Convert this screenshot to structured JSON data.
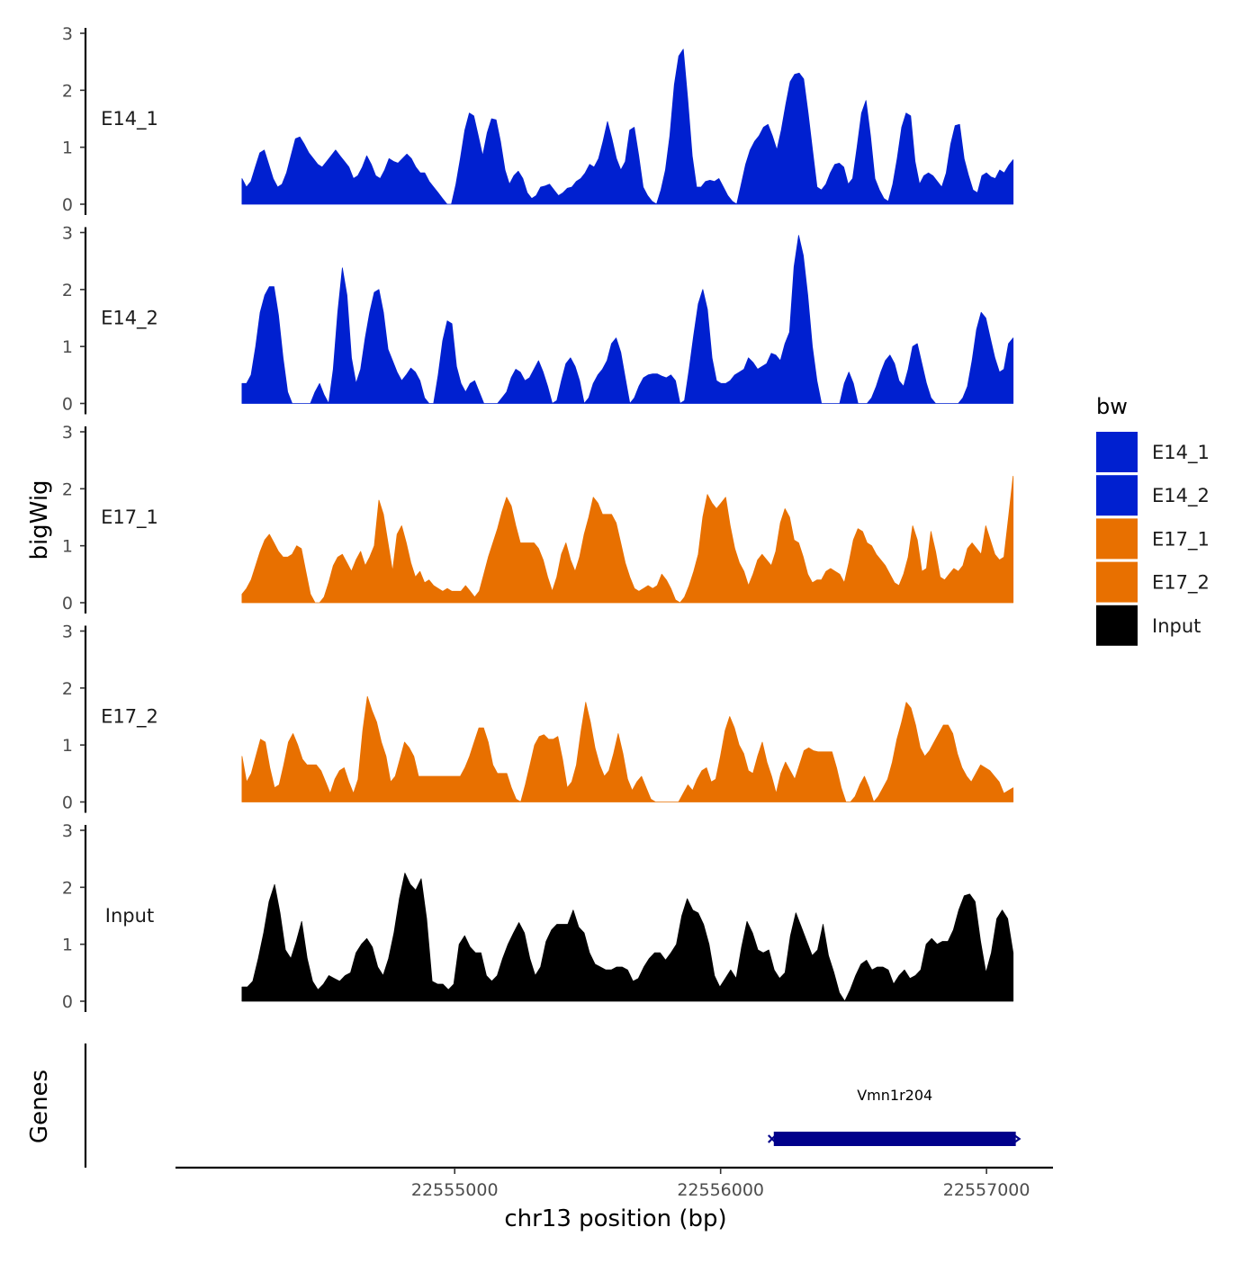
{
  "chart_data": {
    "type": "area",
    "chromosome": "chr13",
    "x_range": [
      22554200,
      22557100
    ],
    "xlim": [
      22553950,
      22557250
    ],
    "ylim": [
      0,
      3
    ],
    "y_ticks": [
      "0",
      "1",
      "2",
      "3"
    ],
    "x_ticks": [
      {
        "value": 22555000,
        "label": "22555000"
      },
      {
        "value": 22556000,
        "label": "22556000"
      },
      {
        "value": 22557000,
        "label": "22557000"
      }
    ],
    "ylabel": "bigWig",
    "xlabel": "chr13 position (bp)",
    "genes_label": "Genes",
    "legend": {
      "title": "bw",
      "items": [
        {
          "name": "E14_1",
          "color": "#0020d0"
        },
        {
          "name": "E14_2",
          "color": "#0020d0"
        },
        {
          "name": "E17_1",
          "color": "#e87000"
        },
        {
          "name": "E17_2",
          "color": "#e87000"
        },
        {
          "name": "Input",
          "color": "#000000"
        }
      ]
    },
    "gene": {
      "name": "Vmn1r204",
      "start": 22556200,
      "end": 22557110,
      "strand": "+",
      "color": "#00008b"
    },
    "series": [
      {
        "name": "E14_1",
        "label": "E14_1",
        "color": "#0020d0",
        "values": [
          0.45,
          0.3,
          0.4,
          0.65,
          0.9,
          0.95,
          0.7,
          0.45,
          0.3,
          0.35,
          0.55,
          0.85,
          1.15,
          1.18,
          1.05,
          0.9,
          0.8,
          0.7,
          0.65,
          0.75,
          0.85,
          0.95,
          0.85,
          0.75,
          0.65,
          0.45,
          0.5,
          0.65,
          0.85,
          0.7,
          0.5,
          0.45,
          0.6,
          0.8,
          0.75,
          0.72,
          0.8,
          0.88,
          0.8,
          0.65,
          0.55,
          0.55,
          0.4,
          0.3,
          0.2,
          0.1,
          0.0,
          0.0,
          0.35,
          0.8,
          1.3,
          1.6,
          1.55,
          1.2,
          0.85,
          1.25,
          1.5,
          1.48,
          1.1,
          0.6,
          0.35,
          0.5,
          0.58,
          0.45,
          0.2,
          0.1,
          0.15,
          0.3,
          0.32,
          0.35,
          0.25,
          0.15,
          0.2,
          0.28,
          0.3,
          0.4,
          0.45,
          0.55,
          0.7,
          0.65,
          0.8,
          1.1,
          1.45,
          1.15,
          0.8,
          0.6,
          0.75,
          1.3,
          1.35,
          0.85,
          0.3,
          0.15,
          0.05,
          0.0,
          0.25,
          0.6,
          1.2,
          2.1,
          2.6,
          2.72,
          1.85,
          0.85,
          0.3,
          0.3,
          0.4,
          0.42,
          0.4,
          0.45,
          0.3,
          0.15,
          0.05,
          0.0,
          0.35,
          0.7,
          0.95,
          1.1,
          1.2,
          1.35,
          1.4,
          1.2,
          0.95,
          1.3,
          1.75,
          2.15,
          2.28,
          2.3,
          2.2,
          1.6,
          0.95,
          0.3,
          0.25,
          0.35,
          0.55,
          0.7,
          0.72,
          0.65,
          0.35,
          0.45,
          1.0,
          1.6,
          1.82,
          1.2,
          0.45,
          0.25,
          0.1,
          0.05,
          0.35,
          0.8,
          1.35,
          1.6,
          1.55,
          0.75,
          0.35,
          0.5,
          0.55,
          0.5,
          0.4,
          0.3,
          0.55,
          1.05,
          1.38,
          1.4,
          0.8,
          0.5,
          0.25,
          0.2,
          0.5,
          0.55,
          0.48,
          0.45,
          0.6,
          0.55,
          0.68,
          0.78
        ]
      },
      {
        "name": "E14_2",
        "label": "E14_2",
        "color": "#0020d0",
        "values": [
          0.35,
          0.35,
          0.5,
          1.0,
          1.6,
          1.9,
          2.05,
          2.05,
          1.55,
          0.8,
          0.2,
          0.0,
          0.0,
          0.0,
          0.0,
          0.0,
          0.2,
          0.35,
          0.15,
          0.0,
          0.6,
          1.6,
          2.38,
          1.9,
          0.8,
          0.35,
          0.6,
          1.15,
          1.6,
          1.95,
          2.0,
          1.6,
          0.95,
          0.75,
          0.55,
          0.4,
          0.5,
          0.62,
          0.55,
          0.4,
          0.1,
          0.0,
          0.0,
          0.5,
          1.1,
          1.45,
          1.4,
          0.65,
          0.35,
          0.2,
          0.35,
          0.4,
          0.2,
          0.0,
          0.0,
          0.0,
          0.0,
          0.1,
          0.2,
          0.45,
          0.6,
          0.55,
          0.4,
          0.45,
          0.6,
          0.75,
          0.55,
          0.3,
          0.0,
          0.05,
          0.4,
          0.7,
          0.8,
          0.65,
          0.4,
          0.0,
          0.1,
          0.35,
          0.5,
          0.6,
          0.75,
          1.05,
          1.15,
          0.9,
          0.45,
          0.0,
          0.1,
          0.3,
          0.45,
          0.5,
          0.52,
          0.52,
          0.48,
          0.45,
          0.5,
          0.4,
          0.0,
          0.05,
          0.6,
          1.2,
          1.75,
          2.0,
          1.65,
          0.8,
          0.4,
          0.35,
          0.35,
          0.4,
          0.5,
          0.55,
          0.6,
          0.8,
          0.72,
          0.6,
          0.65,
          0.7,
          0.88,
          0.85,
          0.75,
          1.05,
          1.25,
          2.4,
          2.95,
          2.6,
          1.9,
          1.0,
          0.4,
          0.0,
          0.0,
          0.0,
          0.0,
          0.0,
          0.35,
          0.55,
          0.35,
          0.0,
          0.0,
          0.0,
          0.1,
          0.3,
          0.55,
          0.75,
          0.85,
          0.7,
          0.4,
          0.3,
          0.6,
          1.0,
          1.05,
          0.7,
          0.35,
          0.1,
          0.0,
          0.0,
          0.0,
          0.0,
          0.0,
          0.0,
          0.1,
          0.3,
          0.75,
          1.3,
          1.6,
          1.5,
          1.15,
          0.8,
          0.55,
          0.6,
          1.05,
          1.15
        ]
      },
      {
        "name": "E17_1",
        "label": "E17_1",
        "color": "#e87000",
        "values": [
          0.15,
          0.25,
          0.4,
          0.65,
          0.9,
          1.1,
          1.2,
          1.05,
          0.9,
          0.8,
          0.8,
          0.85,
          1.0,
          0.95,
          0.55,
          0.15,
          0.0,
          0.0,
          0.1,
          0.35,
          0.65,
          0.8,
          0.85,
          0.7,
          0.55,
          0.75,
          0.9,
          0.65,
          0.8,
          1.0,
          1.8,
          1.55,
          1.05,
          0.55,
          1.2,
          1.35,
          1.05,
          0.7,
          0.45,
          0.55,
          0.35,
          0.4,
          0.3,
          0.25,
          0.2,
          0.25,
          0.2,
          0.2,
          0.2,
          0.3,
          0.2,
          0.1,
          0.2,
          0.5,
          0.8,
          1.05,
          1.3,
          1.6,
          1.85,
          1.7,
          1.35,
          1.05,
          1.05,
          1.05,
          1.05,
          0.95,
          0.75,
          0.45,
          0.2,
          0.45,
          0.85,
          1.05,
          0.75,
          0.55,
          0.8,
          1.2,
          1.5,
          1.85,
          1.75,
          1.55,
          1.55,
          1.55,
          1.4,
          1.05,
          0.7,
          0.45,
          0.25,
          0.2,
          0.25,
          0.3,
          0.25,
          0.3,
          0.5,
          0.4,
          0.25,
          0.05,
          0.0,
          0.1,
          0.3,
          0.55,
          0.85,
          1.5,
          1.9,
          1.75,
          1.65,
          1.75,
          1.85,
          1.35,
          0.95,
          0.7,
          0.55,
          0.3,
          0.5,
          0.75,
          0.85,
          0.75,
          0.65,
          0.9,
          1.4,
          1.65,
          1.5,
          1.1,
          1.05,
          0.8,
          0.5,
          0.35,
          0.4,
          0.4,
          0.55,
          0.6,
          0.55,
          0.5,
          0.35,
          0.7,
          1.1,
          1.3,
          1.25,
          1.05,
          1.0,
          0.85,
          0.75,
          0.65,
          0.5,
          0.35,
          0.3,
          0.5,
          0.8,
          1.35,
          1.1,
          0.55,
          0.6,
          1.25,
          0.9,
          0.45,
          0.4,
          0.5,
          0.6,
          0.55,
          0.65,
          0.95,
          1.05,
          0.95,
          0.85,
          1.35,
          1.1,
          0.85,
          0.75,
          0.8,
          1.5,
          2.22
        ]
      },
      {
        "name": "E17_2",
        "label": "E17_2",
        "color": "#e87000",
        "values": [
          0.8,
          0.35,
          0.5,
          0.8,
          1.1,
          1.05,
          0.6,
          0.25,
          0.3,
          0.65,
          1.05,
          1.2,
          1.0,
          0.75,
          0.65,
          0.65,
          0.65,
          0.55,
          0.35,
          0.15,
          0.4,
          0.55,
          0.6,
          0.35,
          0.15,
          0.4,
          1.25,
          1.85,
          1.6,
          1.4,
          1.05,
          0.8,
          0.35,
          0.45,
          0.75,
          1.05,
          0.95,
          0.8,
          0.45,
          0.45,
          0.45,
          0.45,
          0.45,
          0.45,
          0.45,
          0.45,
          0.45,
          0.45,
          0.6,
          0.8,
          1.05,
          1.3,
          1.3,
          1.05,
          0.65,
          0.5,
          0.5,
          0.5,
          0.25,
          0.05,
          0.0,
          0.3,
          0.65,
          1.0,
          1.15,
          1.18,
          1.1,
          1.1,
          1.15,
          0.75,
          0.25,
          0.35,
          0.65,
          1.25,
          1.75,
          1.4,
          0.95,
          0.65,
          0.45,
          0.55,
          0.85,
          1.2,
          0.85,
          0.4,
          0.2,
          0.35,
          0.45,
          0.25,
          0.05,
          0.0,
          0.0,
          0.0,
          0.0,
          0.0,
          0.0,
          0.15,
          0.3,
          0.2,
          0.4,
          0.55,
          0.6,
          0.35,
          0.4,
          0.8,
          1.25,
          1.5,
          1.3,
          1.0,
          0.85,
          0.55,
          0.5,
          0.8,
          1.05,
          0.7,
          0.45,
          0.15,
          0.5,
          0.7,
          0.55,
          0.4,
          0.65,
          0.9,
          0.95,
          0.9,
          0.88,
          0.88,
          0.88,
          0.88,
          0.6,
          0.25,
          0.0,
          0.0,
          0.1,
          0.3,
          0.45,
          0.25,
          0.0,
          0.1,
          0.25,
          0.4,
          0.7,
          1.1,
          1.4,
          1.75,
          1.65,
          1.35,
          0.95,
          0.8,
          0.9,
          1.05,
          1.2,
          1.35,
          1.35,
          1.2,
          0.85,
          0.6,
          0.45,
          0.35,
          0.5,
          0.65,
          0.6,
          0.55,
          0.45,
          0.35,
          0.15,
          0.2,
          0.25
        ]
      },
      {
        "name": "Input",
        "label": "Input",
        "color": "#000000",
        "values": [
          0.25,
          0.25,
          0.35,
          0.75,
          1.2,
          1.75,
          2.05,
          1.55,
          0.9,
          0.75,
          1.05,
          1.4,
          0.75,
          0.35,
          0.2,
          0.3,
          0.45,
          0.4,
          0.35,
          0.45,
          0.5,
          0.85,
          1.0,
          1.1,
          0.95,
          0.6,
          0.45,
          0.75,
          1.2,
          1.8,
          2.25,
          2.05,
          1.95,
          2.15,
          1.45,
          0.35,
          0.3,
          0.3,
          0.2,
          0.3,
          1.0,
          1.15,
          0.95,
          0.85,
          0.85,
          0.45,
          0.35,
          0.45,
          0.75,
          1.0,
          1.2,
          1.38,
          1.2,
          0.75,
          0.45,
          0.6,
          1.05,
          1.25,
          1.35,
          1.35,
          1.35,
          1.6,
          1.3,
          1.2,
          0.85,
          0.65,
          0.6,
          0.55,
          0.55,
          0.6,
          0.6,
          0.55,
          0.35,
          0.4,
          0.6,
          0.75,
          0.85,
          0.85,
          0.72,
          0.85,
          1.0,
          1.5,
          1.8,
          1.6,
          1.55,
          1.35,
          1.0,
          0.45,
          0.25,
          0.4,
          0.55,
          0.4,
          0.95,
          1.4,
          1.2,
          0.9,
          0.85,
          0.9,
          0.55,
          0.4,
          0.5,
          1.15,
          1.55,
          1.3,
          1.05,
          0.8,
          0.9,
          1.35,
          0.8,
          0.5,
          0.15,
          0.0,
          0.2,
          0.45,
          0.65,
          0.72,
          0.55,
          0.6,
          0.6,
          0.55,
          0.3,
          0.45,
          0.55,
          0.4,
          0.45,
          0.55,
          1.0,
          1.1,
          1.0,
          1.05,
          1.05,
          1.25,
          1.6,
          1.85,
          1.88,
          1.75,
          1.05,
          0.5,
          0.85,
          1.45,
          1.6,
          1.45,
          0.85
        ]
      }
    ]
  }
}
